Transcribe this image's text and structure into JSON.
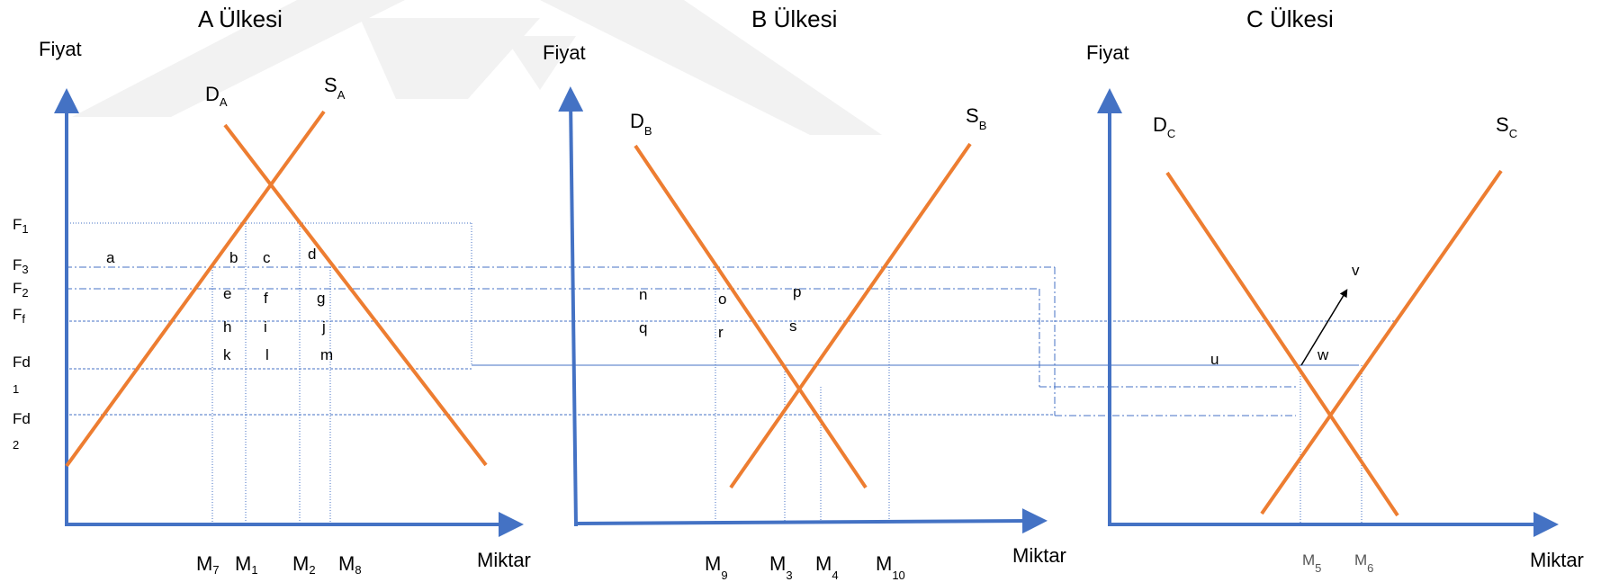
{
  "colors": {
    "axis": "#4472c4",
    "curve": "#ed7d31",
    "guide": "#4472c4",
    "arrow": "#000000",
    "watermark": "#efefef"
  },
  "panels": [
    {
      "title": "A Ülkesi",
      "y_label": "Fiyat",
      "x_label": "Miktar",
      "demand": {
        "base": "D",
        "sub": "A"
      },
      "supply": {
        "base": "S",
        "sub": "A"
      }
    },
    {
      "title": "B Ülkesi",
      "y_label": "Fiyat",
      "x_label": "Miktar",
      "demand": {
        "base": "D",
        "sub": "B"
      },
      "supply": {
        "base": "S",
        "sub": "B"
      }
    },
    {
      "title": "C Ülkesi",
      "y_label": "Fiyat",
      "x_label": "Miktar",
      "demand": {
        "base": "D",
        "sub": "C"
      },
      "supply": {
        "base": "S",
        "sub": "C"
      }
    }
  ],
  "price_levels": [
    {
      "base": "F",
      "sub": "1"
    },
    {
      "base": "F",
      "sub": "3"
    },
    {
      "base": "F",
      "sub": "2"
    },
    {
      "base": "F",
      "sub": "f"
    },
    {
      "base": "Fd",
      "sub": "1"
    },
    {
      "base": "Fd",
      "sub": "2"
    }
  ],
  "quantity_marks": [
    {
      "base": "M",
      "sub": "7"
    },
    {
      "base": "M",
      "sub": "1"
    },
    {
      "base": "M",
      "sub": "2"
    },
    {
      "base": "M",
      "sub": "8"
    },
    {
      "base": "M",
      "sub": "9"
    },
    {
      "base": "M",
      "sub": "3"
    },
    {
      "base": "M",
      "sub": "4"
    },
    {
      "base": "M",
      "sub": "10"
    },
    {
      "base": "M",
      "sub": "5"
    },
    {
      "base": "M",
      "sub": "6"
    }
  ],
  "area_labels": [
    "a",
    "b",
    "c",
    "d",
    "e",
    "f",
    "g",
    "h",
    "i",
    "j",
    "k",
    "l",
    "m",
    "n",
    "o",
    "p",
    "q",
    "r",
    "s",
    "u",
    "w",
    "v"
  ]
}
